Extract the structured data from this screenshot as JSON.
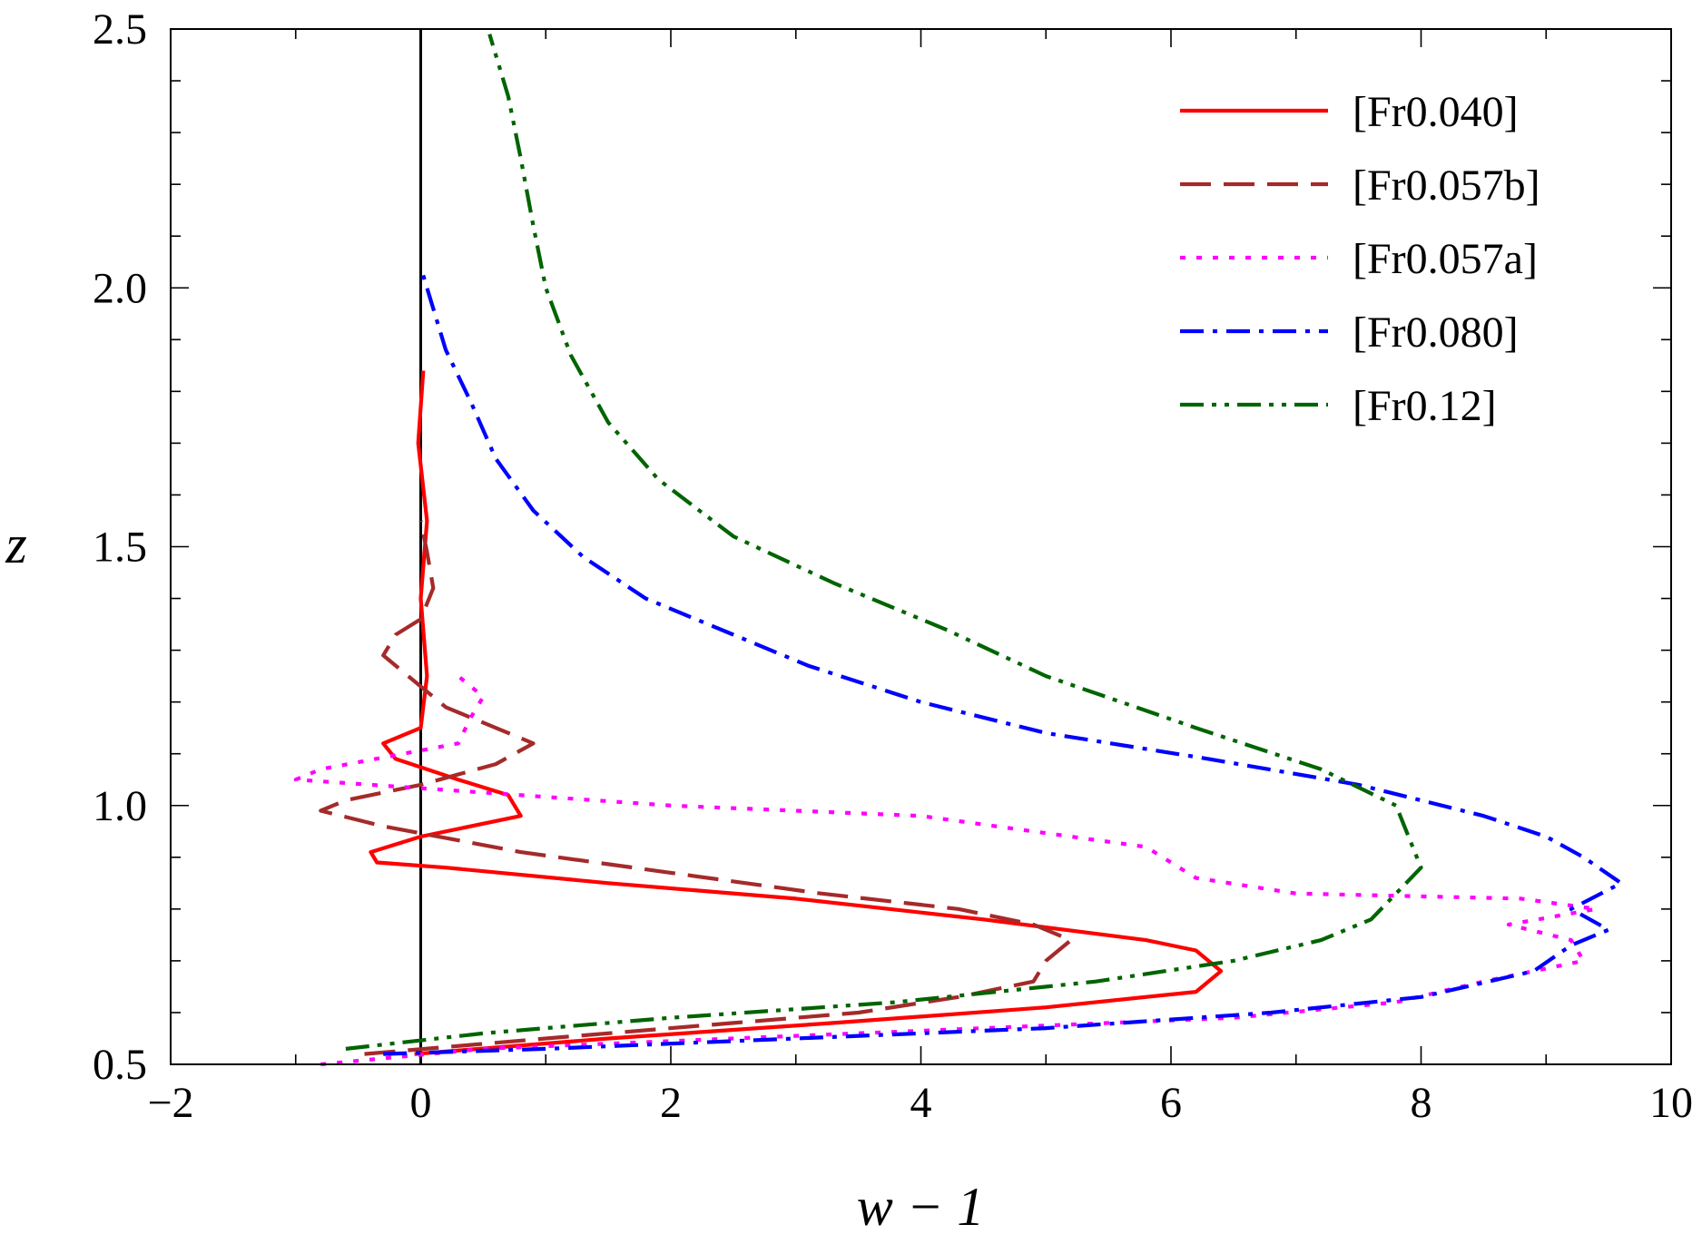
{
  "chart_data": {
    "type": "line",
    "xlabel": "w − 1",
    "ylabel": "z",
    "xlim": [
      -2,
      10
    ],
    "ylim": [
      0.5,
      2.5
    ],
    "xticks": [
      -2,
      0,
      2,
      4,
      6,
      8,
      10
    ],
    "xtick_labels": [
      "−2",
      "0",
      "2",
      "4",
      "6",
      "8",
      "10"
    ],
    "yticks": [
      0.5,
      1.0,
      1.5,
      2.0,
      2.5
    ],
    "ytick_labels": [
      "0.5",
      "1.0",
      "1.5",
      "2.0",
      "2.5"
    ],
    "x_minor_step": 1,
    "y_minor_step": 0.1,
    "grid": false,
    "legend_position": "top-right",
    "reference_line_x": 0,
    "series": [
      {
        "name": "[Fr0.040]",
        "color": "#ff0000",
        "dash": "solid",
        "points": [
          [
            -0.05,
            0.52
          ],
          [
            1.5,
            0.55
          ],
          [
            3.3,
            0.58
          ],
          [
            5.0,
            0.61
          ],
          [
            6.2,
            0.64
          ],
          [
            6.4,
            0.68
          ],
          [
            6.2,
            0.72
          ],
          [
            5.8,
            0.74
          ],
          [
            4.5,
            0.78
          ],
          [
            3.0,
            0.82
          ],
          [
            1.5,
            0.85
          ],
          [
            0.2,
            0.88
          ],
          [
            -0.35,
            0.89
          ],
          [
            -0.4,
            0.91
          ],
          [
            0.0,
            0.94
          ],
          [
            0.8,
            0.98
          ],
          [
            0.7,
            1.02
          ],
          [
            0.3,
            1.05
          ],
          [
            -0.2,
            1.09
          ],
          [
            -0.3,
            1.12
          ],
          [
            0.0,
            1.15
          ],
          [
            0.05,
            1.25
          ],
          [
            0.0,
            1.4
          ],
          [
            0.05,
            1.55
          ],
          [
            -0.02,
            1.7
          ],
          [
            0.02,
            1.84
          ]
        ]
      },
      {
        "name": "[Fr0.057b]",
        "color": "#a52a2a",
        "dash": "long-dash",
        "points": [
          [
            -0.45,
            0.52
          ],
          [
            1.0,
            0.55
          ],
          [
            2.5,
            0.58
          ],
          [
            3.5,
            0.6
          ],
          [
            4.3,
            0.63
          ],
          [
            4.9,
            0.66
          ],
          [
            5.0,
            0.7
          ],
          [
            5.2,
            0.74
          ],
          [
            4.9,
            0.77
          ],
          [
            4.3,
            0.8
          ],
          [
            3.2,
            0.83
          ],
          [
            2.0,
            0.87
          ],
          [
            0.8,
            0.91
          ],
          [
            -0.3,
            0.96
          ],
          [
            -0.8,
            0.99
          ],
          [
            -0.6,
            1.01
          ],
          [
            0.0,
            1.04
          ],
          [
            0.6,
            1.08
          ],
          [
            0.9,
            1.12
          ],
          [
            0.6,
            1.15
          ],
          [
            0.2,
            1.19
          ],
          [
            0.0,
            1.23
          ],
          [
            -0.3,
            1.29
          ],
          [
            -0.2,
            1.33
          ],
          [
            0.0,
            1.36
          ],
          [
            0.1,
            1.42
          ],
          [
            0.05,
            1.49
          ],
          [
            0.0,
            1.55
          ]
        ]
      },
      {
        "name": "[Fr0.057a]",
        "color": "#ff00ff",
        "dash": "dotted",
        "points": [
          [
            -0.8,
            0.5
          ],
          [
            0.5,
            0.53
          ],
          [
            2.5,
            0.55
          ],
          [
            4.5,
            0.57
          ],
          [
            6.5,
            0.59
          ],
          [
            7.8,
            0.62
          ],
          [
            8.5,
            0.66
          ],
          [
            9.3,
            0.7
          ],
          [
            9.2,
            0.74
          ],
          [
            8.7,
            0.77
          ],
          [
            9.4,
            0.8
          ],
          [
            8.8,
            0.82
          ],
          [
            7.0,
            0.83
          ],
          [
            6.2,
            0.86
          ],
          [
            6.0,
            0.89
          ],
          [
            5.8,
            0.92
          ],
          [
            4.0,
            0.98
          ],
          [
            2.0,
            1.0
          ],
          [
            0.2,
            1.03
          ],
          [
            -1.0,
            1.05
          ],
          [
            -0.8,
            1.07
          ],
          [
            0.3,
            1.12
          ],
          [
            0.4,
            1.17
          ],
          [
            0.5,
            1.21
          ],
          [
            0.3,
            1.25
          ]
        ]
      },
      {
        "name": "[Fr0.080]",
        "color": "#0000ff",
        "dash": "dash-dot",
        "points": [
          [
            -0.3,
            0.52
          ],
          [
            1.0,
            0.53
          ],
          [
            3.0,
            0.55
          ],
          [
            5.0,
            0.57
          ],
          [
            6.8,
            0.6
          ],
          [
            8.0,
            0.63
          ],
          [
            8.9,
            0.68
          ],
          [
            9.2,
            0.73
          ],
          [
            9.5,
            0.76
          ],
          [
            9.2,
            0.8
          ],
          [
            9.6,
            0.85
          ],
          [
            9.3,
            0.9
          ],
          [
            9.0,
            0.94
          ],
          [
            8.5,
            0.98
          ],
          [
            7.5,
            1.04
          ],
          [
            6.3,
            1.09
          ],
          [
            5.0,
            1.14
          ],
          [
            4.0,
            1.2
          ],
          [
            3.1,
            1.27
          ],
          [
            2.5,
            1.33
          ],
          [
            1.8,
            1.4
          ],
          [
            1.3,
            1.48
          ],
          [
            0.9,
            1.57
          ],
          [
            0.6,
            1.67
          ],
          [
            0.4,
            1.78
          ],
          [
            0.2,
            1.88
          ],
          [
            0.1,
            1.96
          ],
          [
            0.0,
            2.04
          ]
        ]
      },
      {
        "name": "[Fr0.12]",
        "color": "#006400",
        "dash": "dash-dot-dot",
        "points": [
          [
            -0.6,
            0.53
          ],
          [
            0.5,
            0.56
          ],
          [
            2.0,
            0.59
          ],
          [
            3.8,
            0.62
          ],
          [
            5.4,
            0.66
          ],
          [
            6.5,
            0.7
          ],
          [
            7.2,
            0.74
          ],
          [
            7.6,
            0.78
          ],
          [
            7.8,
            0.83
          ],
          [
            8.0,
            0.88
          ],
          [
            7.9,
            0.94
          ],
          [
            7.8,
            1.0
          ],
          [
            7.2,
            1.07
          ],
          [
            6.2,
            1.15
          ],
          [
            5.0,
            1.25
          ],
          [
            4.2,
            1.34
          ],
          [
            3.3,
            1.43
          ],
          [
            2.5,
            1.52
          ],
          [
            1.9,
            1.63
          ],
          [
            1.5,
            1.74
          ],
          [
            1.2,
            1.87
          ],
          [
            1.0,
            2.0
          ],
          [
            0.9,
            2.12
          ],
          [
            0.8,
            2.25
          ],
          [
            0.7,
            2.37
          ],
          [
            0.55,
            2.49
          ]
        ]
      }
    ]
  }
}
